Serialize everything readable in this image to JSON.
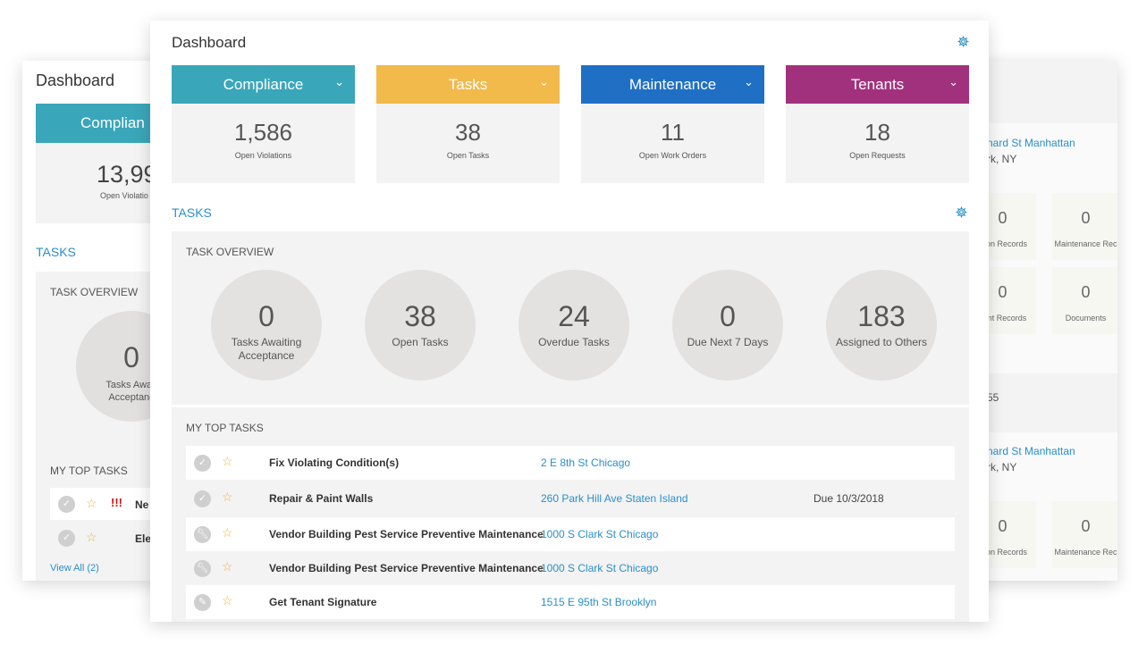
{
  "back_left": {
    "title": "Dashboard",
    "compliance_label": "Complian",
    "stat_value": "13,99",
    "stat_label": "Open Violatio",
    "tasks_link": "TASKS",
    "overview_label": "TASK OVERVIEW",
    "circle_value": "0",
    "circle_label": "Tasks Await\nAcceptanc",
    "my_top_tasks": "MY TOP TASKS",
    "row1_name": "Ne",
    "row2_name": "Ele",
    "view_all": "View All (2)"
  },
  "back_right": {
    "address1": "nard St Manhattan",
    "city1": "rk, NY",
    "cells1": [
      {
        "value": "0",
        "label": "ction Records"
      },
      {
        "value": "0",
        "label": "Maintenance Rec"
      },
      {
        "value": "0",
        "label": "dent Records"
      },
      {
        "value": "0",
        "label": "Documents"
      }
    ],
    "mid_text": "55",
    "address2": "nard St Manhattan",
    "city2": "rk, NY",
    "cells2": [
      {
        "value": "0",
        "label": "ction Records"
      },
      {
        "value": "0",
        "label": "Maintenance Rec"
      }
    ]
  },
  "main": {
    "title": "Dashboard",
    "stats": [
      {
        "label": "Compliance",
        "value": "1,586",
        "sub": "Open Violations",
        "color": "#3aa6b9"
      },
      {
        "label": "Tasks",
        "value": "38",
        "sub": "Open Tasks",
        "color": "#f2b94b"
      },
      {
        "label": "Maintenance",
        "value": "11",
        "sub": "Open Work Orders",
        "color": "#1f6fc5"
      },
      {
        "label": "Tenants",
        "value": "18",
        "sub": "Open Requests",
        "color": "#a2317d"
      }
    ],
    "tasks_heading": "TASKS",
    "overview_label": "TASK OVERVIEW",
    "circles": [
      {
        "value": "0",
        "label": "Tasks Awaiting\nAcceptance"
      },
      {
        "value": "38",
        "label": "Open Tasks"
      },
      {
        "value": "24",
        "label": "Overdue Tasks"
      },
      {
        "value": "0",
        "label": "Due Next 7 Days"
      },
      {
        "value": "183",
        "label": "Assigned to Others"
      }
    ],
    "my_top_tasks": "MY TOP TASKS",
    "tasks": [
      {
        "icon": "check-icon",
        "name": "Fix Violating Condition(s)",
        "address": "2 E 8th St Chicago",
        "due": ""
      },
      {
        "icon": "check-icon",
        "name": "Repair & Paint Walls",
        "address": "260 Park Hill Ave Staten Island",
        "due": "Due 10/3/2018"
      },
      {
        "icon": "wrench-icon",
        "name": "Vendor Building Pest Service Preventive Maintenance",
        "address": "1000 S Clark St Chicago",
        "due": ""
      },
      {
        "icon": "wrench-icon",
        "name": "Vendor Building Pest Service Preventive Maintenance",
        "address": "1000 S Clark St Chicago",
        "due": ""
      },
      {
        "icon": "pen-icon",
        "name": "Get Tenant Signature",
        "address": "1515 E 95th St Brooklyn",
        "due": ""
      }
    ]
  }
}
